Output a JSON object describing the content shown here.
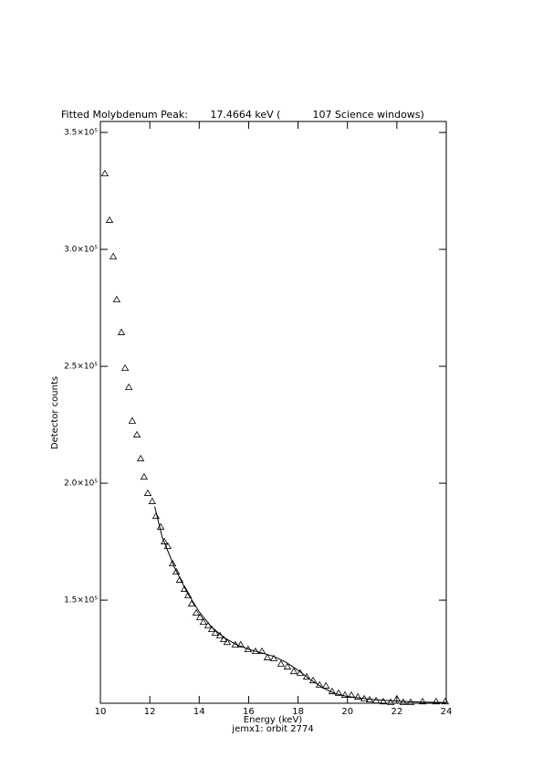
{
  "chart_data": {
    "type": "scatter",
    "title": "Fitted Molybdenum Peak:       17.4664 keV (          107 Science windows)",
    "x_label": "Energy (keV)",
    "subtitle": "jemx1: orbit 2774",
    "y_label": "Detector counts",
    "xlim": [
      10,
      24
    ],
    "xticks": [
      10,
      12,
      14,
      16,
      18,
      20,
      22,
      24
    ],
    "ylim": [
      105900,
      354700
    ],
    "yticks": [
      {
        "value": 150000,
        "label": "1.5×10⁵"
      },
      {
        "value": 200000,
        "label": "2.0×10⁵"
      },
      {
        "value": 250000,
        "label": "2.5×10⁵"
      },
      {
        "value": 300000,
        "label": "3.0×10⁵"
      },
      {
        "value": 350000,
        "label": "3.5×10⁵"
      }
    ],
    "color": "#000000",
    "x": [
      10.18,
      10.37,
      10.52,
      10.66,
      10.85,
      11.0,
      11.15,
      11.29,
      11.48,
      11.63,
      11.77,
      11.92,
      12.1,
      12.25,
      12.44,
      12.59,
      12.73,
      12.92,
      13.07,
      13.21,
      13.4,
      13.55,
      13.69,
      13.88,
      14.03,
      14.17,
      14.36,
      14.51,
      14.65,
      14.84,
      14.99,
      15.13,
      15.46,
      15.68,
      15.98,
      16.28,
      16.54,
      16.76,
      17.02,
      17.31,
      17.57,
      17.83,
      18.09,
      18.35,
      18.61,
      18.87,
      19.13,
      19.38,
      19.64,
      19.9,
      20.16,
      20.42,
      20.68,
      20.9,
      21.16,
      21.45,
      21.75,
      22.0,
      22.26,
      22.56,
      23.04,
      23.59,
      23.96
    ],
    "values": [
      332400,
      312500,
      296900,
      278500,
      264500,
      249200,
      241000,
      226600,
      220700,
      210500,
      202700,
      195700,
      192200,
      185900,
      181300,
      175000,
      173000,
      165600,
      162100,
      158600,
      154700,
      152000,
      148400,
      144500,
      142600,
      140600,
      139100,
      137500,
      135900,
      134800,
      133200,
      132000,
      130900,
      130900,
      128900,
      128100,
      128100,
      125400,
      125000,
      122700,
      121500,
      119500,
      118800,
      117200,
      115600,
      113700,
      113300,
      110900,
      110200,
      109400,
      109400,
      108600,
      107800,
      107400,
      107000,
      106600,
      106300,
      107800,
      106300,
      106300,
      106600,
      106600,
      106600
    ],
    "fit": {
      "x": [
        12.2,
        12.5,
        13,
        13.5,
        14,
        14.5,
        15,
        15.5,
        16,
        16.5,
        17,
        17.5,
        18,
        18.5,
        19,
        19.5,
        20,
        21,
        22,
        23,
        24
      ],
      "values": [
        190000,
        177000,
        164000,
        153500,
        145000,
        138500,
        134000,
        131000,
        129000,
        127500,
        126000,
        123500,
        120000,
        116000,
        112500,
        110000,
        108800,
        107500,
        106800,
        106400,
        106200
      ]
    }
  }
}
